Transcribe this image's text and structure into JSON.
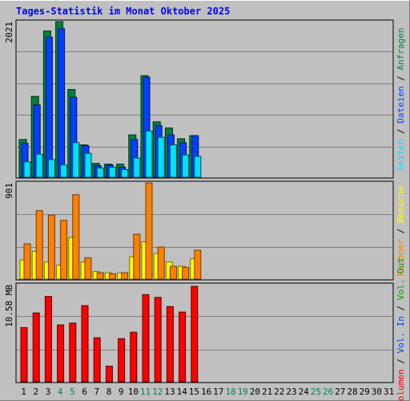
{
  "title": "Tages-Statistik im Monat Oktober 2025",
  "colors": {
    "hits": "#008040",
    "files": "#0040ff",
    "pages": "#00e0ff",
    "visits": "#ffff00",
    "kbytes_in": "#ff8000",
    "kbytes_out": "#00a000",
    "volume": "#ff0000",
    "panel_bg": "#c0c0c0",
    "grid": "#808080",
    "weekend_label": "#00805c",
    "weekday_label": "#000000"
  },
  "chart_data": [
    {
      "type": "bar",
      "panel": "top",
      "ymax_label": "2021",
      "ylim": [
        0,
        2021
      ],
      "legend": [
        {
          "name": "Anfragen",
          "color": "#008040"
        },
        {
          "name": "Dateien",
          "color": "#0040ff"
        },
        {
          "name": "Seiten",
          "color": "#00e0ff"
        }
      ],
      "categories": [
        "1",
        "2",
        "3",
        "4",
        "5",
        "6",
        "7",
        "8",
        "9",
        "10",
        "11",
        "12",
        "13",
        "14",
        "15",
        "16",
        "17",
        "18",
        "19",
        "20",
        "21",
        "22",
        "23",
        "24",
        "25",
        "26",
        "27",
        "28",
        "29",
        "30",
        "31"
      ],
      "series": [
        {
          "name": "Anfragen",
          "values": [
            490,
            1050,
            1900,
            2021,
            1140,
            420,
            180,
            170,
            170,
            550,
            1320,
            720,
            640,
            500,
            540,
            0,
            0,
            0,
            0,
            0,
            0,
            0,
            0,
            0,
            0,
            0,
            0,
            0,
            0,
            0,
            0
          ]
        },
        {
          "name": "Dateien",
          "values": [
            440,
            940,
            1820,
            1930,
            1040,
            410,
            150,
            160,
            130,
            490,
            1300,
            670,
            550,
            450,
            540,
            0,
            0,
            0,
            0,
            0,
            0,
            0,
            0,
            0,
            0,
            0,
            0,
            0,
            0,
            0,
            0
          ]
        },
        {
          "name": "Seiten",
          "values": [
            200,
            300,
            230,
            160,
            450,
            310,
            120,
            130,
            100,
            250,
            600,
            520,
            420,
            290,
            270,
            0,
            0,
            0,
            0,
            0,
            0,
            0,
            0,
            0,
            0,
            0,
            0,
            0,
            0,
            0,
            0
          ]
        }
      ]
    },
    {
      "type": "bar",
      "panel": "middle",
      "ymax_label": "901",
      "ylim": [
        0,
        901
      ],
      "legend": [
        {
          "name": "Besuche",
          "color": "#ffff00"
        },
        {
          "name": "Rechner",
          "color": "#ff8000"
        }
      ],
      "categories": [
        "1",
        "2",
        "3",
        "4",
        "5",
        "6",
        "7",
        "8",
        "9",
        "10",
        "11",
        "12",
        "13",
        "14",
        "15",
        "16",
        "17",
        "18",
        "19",
        "20",
        "21",
        "22",
        "23",
        "24",
        "25",
        "26",
        "27",
        "28",
        "29",
        "30",
        "31"
      ],
      "series": [
        {
          "name": "Besuche",
          "values": [
            180,
            260,
            160,
            130,
            390,
            160,
            70,
            60,
            60,
            210,
            350,
            240,
            160,
            120,
            190,
            0,
            0,
            0,
            0,
            0,
            0,
            0,
            0,
            0,
            0,
            0,
            0,
            0,
            0,
            0,
            0
          ]
        },
        {
          "name": "Rechner",
          "values": [
            330,
            640,
            600,
            550,
            790,
            200,
            60,
            50,
            60,
            420,
            901,
            300,
            120,
            110,
            270,
            0,
            0,
            0,
            0,
            0,
            0,
            0,
            0,
            0,
            0,
            0,
            0,
            0,
            0,
            0,
            0
          ]
        }
      ]
    },
    {
      "type": "bar",
      "panel": "bottom",
      "ymax_label": "10.58 MB",
      "ylim": [
        0,
        10.58
      ],
      "legend": [
        {
          "name": "Vol. Out",
          "color": "#00a000"
        },
        {
          "name": "Vol. In",
          "color": "#0040ff"
        },
        {
          "name": "Volumen",
          "color": "#ff0000"
        }
      ],
      "categories": [
        "1",
        "2",
        "3",
        "4",
        "5",
        "6",
        "7",
        "8",
        "9",
        "10",
        "11",
        "12",
        "13",
        "14",
        "15",
        "16",
        "17",
        "18",
        "19",
        "20",
        "21",
        "22",
        "23",
        "24",
        "25",
        "26",
        "27",
        "28",
        "29",
        "30",
        "31"
      ],
      "series": [
        {
          "name": "Volumen",
          "values": [
            5.9,
            7.5,
            9.3,
            6.2,
            6.4,
            8.3,
            4.8,
            1.7,
            4.7,
            5.4,
            9.5,
            9.2,
            8.2,
            7.6,
            10.4,
            0,
            0,
            0,
            0,
            0,
            0,
            0,
            0,
            0,
            0,
            0,
            0,
            0,
            0,
            0,
            0
          ]
        }
      ]
    }
  ],
  "xaxis": {
    "labels": [
      "1",
      "2",
      "3",
      "4",
      "5",
      "6",
      "7",
      "8",
      "9",
      "10",
      "11",
      "12",
      "13",
      "14",
      "15",
      "16",
      "17",
      "18",
      "19",
      "20",
      "21",
      "22",
      "23",
      "24",
      "25",
      "26",
      "27",
      "28",
      "29",
      "30",
      "31"
    ],
    "weekend": [
      4,
      5,
      11,
      12,
      18,
      19,
      25,
      26
    ]
  }
}
